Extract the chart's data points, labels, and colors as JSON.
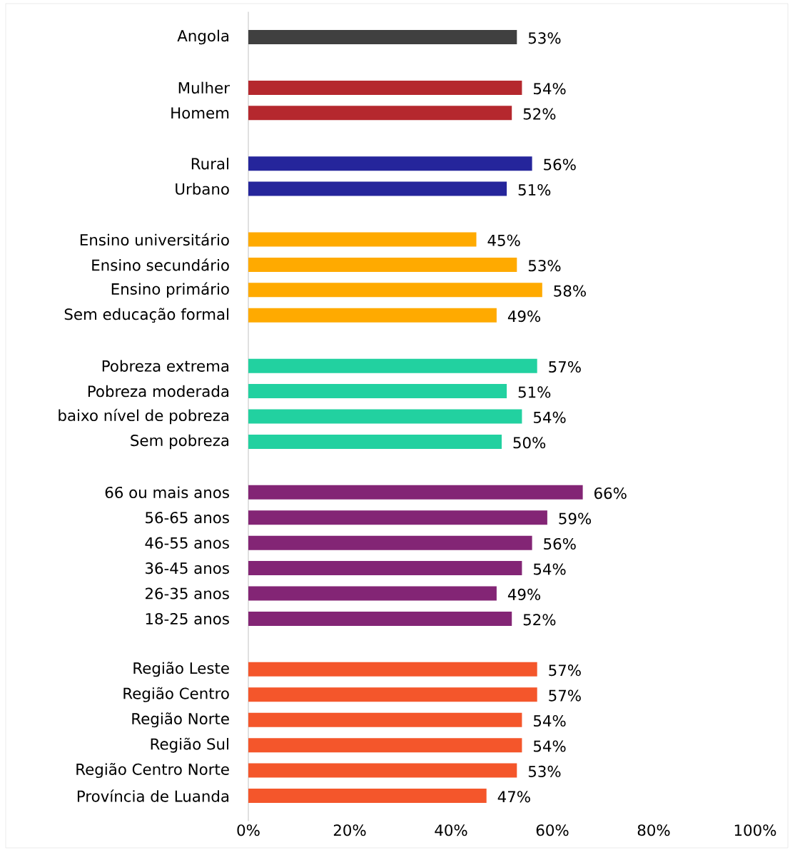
{
  "chart_data": {
    "type": "bar",
    "orientation": "horizontal",
    "categories": [
      "Angola",
      null,
      "Mulher",
      "Homem",
      null,
      "Rural",
      "Urbano",
      null,
      "Ensino universitário",
      "Ensino secundário",
      "Ensino primário",
      "Sem educação formal",
      null,
      "Pobreza extrema",
      "Pobreza moderada",
      "baixo nível de pobreza",
      "Sem pobreza",
      null,
      "66 ou mais anos",
      "56-65 anos",
      "46-55 anos",
      "36-45 anos",
      "26-35 anos",
      "18-25 anos",
      null,
      "Região Leste",
      "Região Centro",
      "Região Norte",
      "Região Sul",
      "Região Centro Norte",
      "Província de Luanda"
    ],
    "values": [
      53,
      null,
      54,
      52,
      null,
      56,
      51,
      null,
      45,
      53,
      58,
      49,
      null,
      57,
      51,
      54,
      50,
      null,
      66,
      59,
      56,
      54,
      49,
      52,
      null,
      57,
      57,
      54,
      54,
      53,
      47
    ],
    "value_labels": [
      "53%",
      null,
      "54%",
      "52%",
      null,
      "56%",
      "51%",
      null,
      "45%",
      "53%",
      "58%",
      "49%",
      null,
      "57%",
      "51%",
      "54%",
      "50%",
      null,
      "66%",
      "59%",
      "56%",
      "54%",
      "49%",
      "52%",
      null,
      "57%",
      "57%",
      "54%",
      "54%",
      "53%",
      "47%"
    ],
    "colors": [
      "#404040",
      null,
      "#b5282e",
      "#b5282e",
      null,
      "#25259b",
      "#25259b",
      null,
      "#ffaa00",
      "#ffaa00",
      "#ffaa00",
      "#ffaa00",
      null,
      "#22d1a0",
      "#22d1a0",
      "#22d1a0",
      "#22d1a0",
      null,
      "#832575",
      "#832575",
      "#832575",
      "#832575",
      "#832575",
      "#832575",
      null,
      "#f4562b",
      "#f4562b",
      "#f4562b",
      "#f4562b",
      "#f4562b",
      "#f4562b"
    ],
    "xlim": [
      0,
      100
    ],
    "xticks": [
      {
        "value": 0,
        "label": "0%"
      },
      {
        "value": 20,
        "label": "20%"
      },
      {
        "value": 40,
        "label": "40%"
      },
      {
        "value": 60,
        "label": "60%"
      },
      {
        "value": 80,
        "label": "80%"
      },
      {
        "value": 100,
        "label": "100%"
      }
    ]
  }
}
